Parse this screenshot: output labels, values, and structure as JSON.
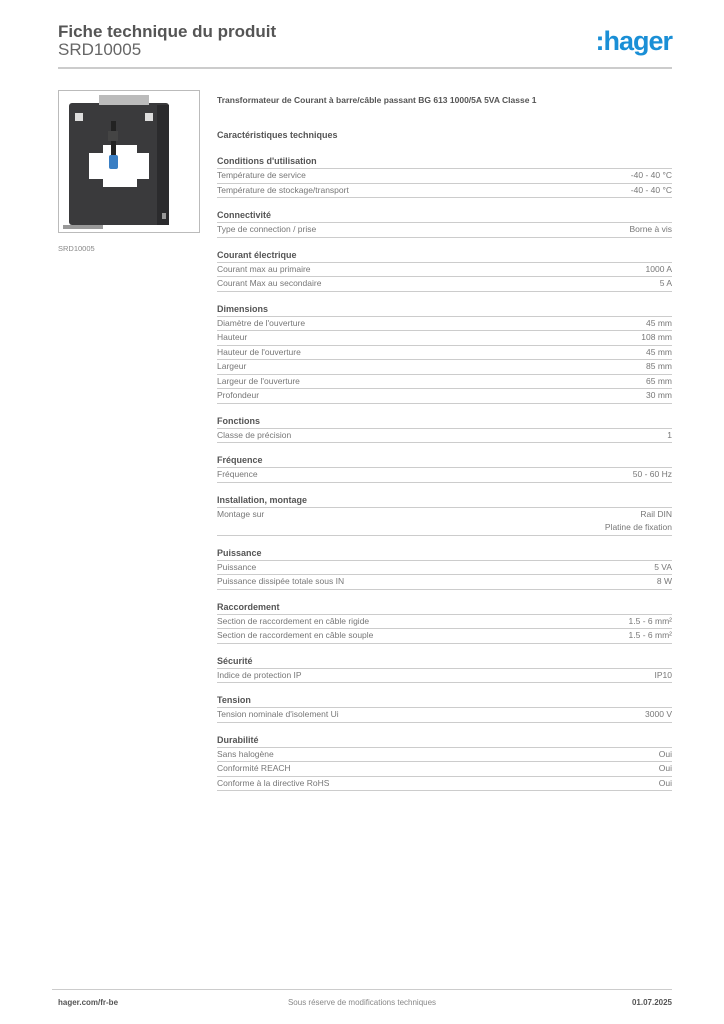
{
  "header": {
    "title": "Fiche technique du produit",
    "code": "SRD10005",
    "logo": ":hager",
    "brand_color": "#1a8fd6"
  },
  "image": {
    "caption": "SRD10005"
  },
  "description": "Transformateur de Courant à barre/câble passant BG 613 1000/5A 5VA Classe 1",
  "characteristics_title": "Caractéristiques techniques",
  "sections": [
    {
      "title": "Conditions d'utilisation",
      "rows": [
        [
          "Température de service",
          "-40 - 40 °C"
        ],
        [
          "Température de stockage/transport",
          "-40 - 40 °C"
        ]
      ]
    },
    {
      "title": "Connectivité",
      "rows": [
        [
          "Type de connection / prise",
          "Borne à vis"
        ]
      ]
    },
    {
      "title": "Courant électrique",
      "rows": [
        [
          "Courant max au primaire",
          "1000 A"
        ],
        [
          "Courant Max au secondaire",
          "5 A"
        ]
      ]
    },
    {
      "title": "Dimensions",
      "rows": [
        [
          "Diamètre de l'ouverture",
          "45 mm"
        ],
        [
          "Hauteur",
          "108 mm"
        ],
        [
          "Hauteur de l'ouverture",
          "45 mm"
        ],
        [
          "Largeur",
          "85 mm"
        ],
        [
          "Largeur de l'ouverture",
          "65 mm"
        ],
        [
          "Profondeur",
          "30 mm"
        ]
      ]
    },
    {
      "title": "Fonctions",
      "rows": [
        [
          "Classe de précision",
          "1"
        ]
      ]
    },
    {
      "title": "Fréquence",
      "rows": [
        [
          "Fréquence",
          "50 - 60 Hz"
        ]
      ]
    },
    {
      "title": "Installation, montage",
      "rows": [
        [
          "Montage sur",
          "Rail DIN\nPlatine de fixation"
        ]
      ]
    },
    {
      "title": "Puissance",
      "rows": [
        [
          "Puissance",
          "5 VA"
        ],
        [
          "Puissance dissipée totale sous IN",
          "8 W"
        ]
      ]
    },
    {
      "title": "Raccordement",
      "rows": [
        [
          "Section de raccordement en câble rigide",
          "1.5 - 6 mm²"
        ],
        [
          "Section de raccordement en câble souple",
          "1.5 - 6 mm²"
        ]
      ]
    },
    {
      "title": "Sécurité",
      "rows": [
        [
          "Indice de protection IP",
          "IP10"
        ]
      ]
    },
    {
      "title": "Tension",
      "rows": [
        [
          "Tension nominale d'isolement Ui",
          "3000 V"
        ]
      ]
    },
    {
      "title": "Durabilité",
      "rows": [
        [
          "Sans halogène",
          "Oui"
        ],
        [
          "Conformité REACH",
          "Oui"
        ],
        [
          "Conforme à la directive RoHS",
          "Oui"
        ]
      ]
    }
  ],
  "footer": {
    "website": "hager.com/fr-be",
    "notice": "Sous réserve de modifications techniques",
    "date": "01.07.2025"
  }
}
